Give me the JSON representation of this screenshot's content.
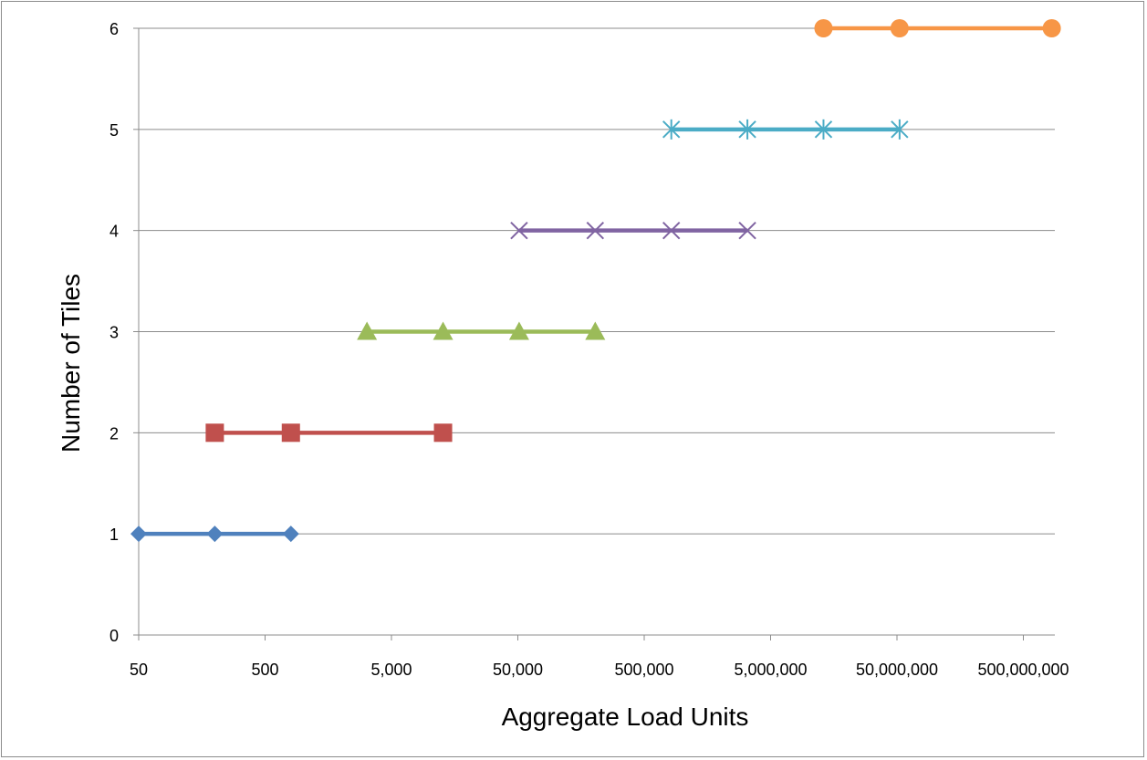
{
  "chart_data": {
    "type": "line",
    "title": "",
    "xlabel": "Aggregate Load Units",
    "ylabel": "Number of Tiles",
    "x_scale": "log",
    "xlim": [
      50,
      1000000000
    ],
    "ylim": [
      0,
      6
    ],
    "x_ticks": [
      50,
      500,
      5000,
      50000,
      500000,
      5000000,
      50000000,
      500000000
    ],
    "x_tick_labels": [
      "50",
      "500",
      "5,000",
      "50,000",
      "500,000",
      "5,000,000",
      "50,000,000",
      "500,000,000"
    ],
    "y_ticks": [
      0,
      1,
      2,
      3,
      4,
      5,
      6
    ],
    "y_tick_labels": [
      "0",
      "1",
      "2",
      "3",
      "4",
      "5",
      "6"
    ],
    "grid": "horizontal",
    "legend": "none",
    "series": [
      {
        "marker": "diamond",
        "color": "#4f81bd",
        "x": [
          50,
          200,
          800
        ],
        "y": [
          1,
          1,
          1
        ]
      },
      {
        "marker": "square",
        "color": "#c0504d",
        "x": [
          200,
          800,
          12800
        ],
        "y": [
          2,
          2,
          2
        ]
      },
      {
        "marker": "triangle",
        "color": "#9bbb59",
        "x": [
          3200,
          12800,
          51200,
          204800
        ],
        "y": [
          3,
          3,
          3,
          3
        ]
      },
      {
        "marker": "x",
        "color": "#8064a2",
        "x": [
          51200,
          204800,
          819200,
          3276800
        ],
        "y": [
          4,
          4,
          4,
          4
        ]
      },
      {
        "marker": "star",
        "color": "#4bacc6",
        "x": [
          819200,
          3276800,
          13107200,
          52428800
        ],
        "y": [
          5,
          5,
          5,
          5
        ]
      },
      {
        "marker": "circle",
        "color": "#f79646",
        "x": [
          13107200,
          52428800,
          838860800
        ],
        "y": [
          6,
          6,
          6
        ]
      }
    ]
  }
}
